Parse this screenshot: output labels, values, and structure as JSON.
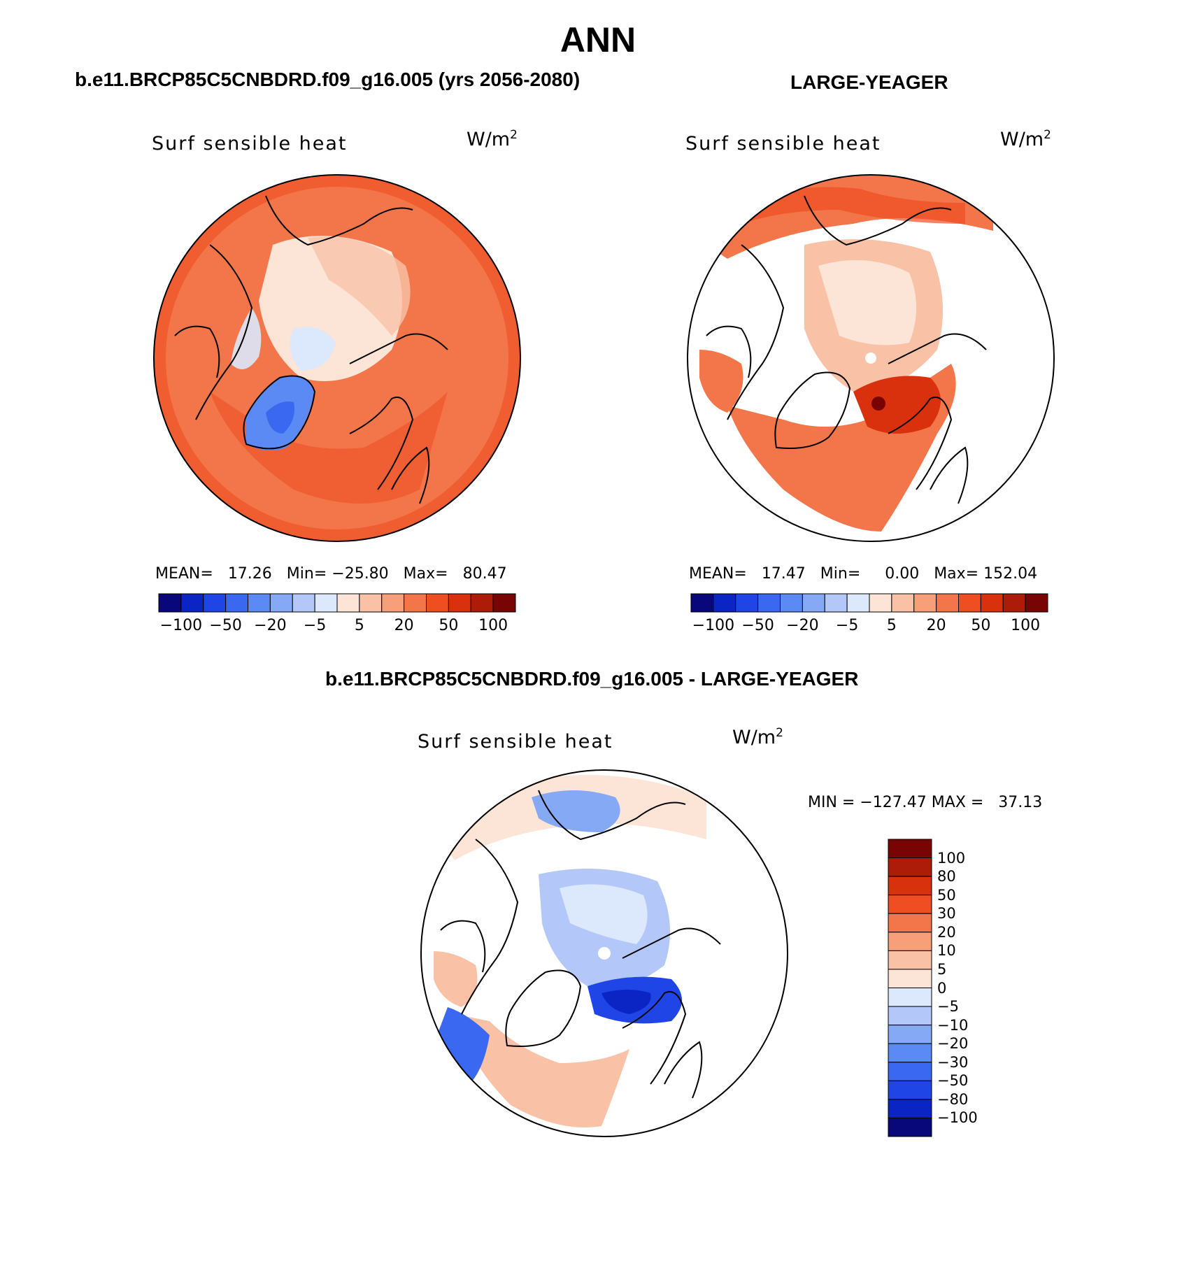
{
  "title": "ANN",
  "panel_left": {
    "case_title": "b.e11.BRCP85C5CNBDRD.f09_g16.005 (yrs 2056-2080)",
    "variable": "Surf sensible heat",
    "units": "W/m",
    "units_exp": "2",
    "stats": {
      "mean_label": "MEAN=",
      "mean": "17.26",
      "min_label": "Min=",
      "min": "−25.80",
      "max_label": "Max=",
      "max": "80.47"
    }
  },
  "panel_right": {
    "case_title": "LARGE-YEAGER",
    "variable": "Surf sensible heat",
    "units": "W/m",
    "units_exp": "2",
    "stats": {
      "mean_label": "MEAN=",
      "mean": "17.47",
      "min_label": "Min=",
      "min": "0.00",
      "max_label": "Max=",
      "max": "152.04"
    }
  },
  "panel_diff": {
    "case_title": "b.e11.BRCP85C5CNBDRD.f09_g16.005 - LARGE-YEAGER",
    "variable": "Surf sensible heat",
    "units": "W/m",
    "units_exp": "2",
    "stats": {
      "min_label": "MIN =",
      "min": "−127.47",
      "max_label": "MAX =",
      "max": "37.13"
    }
  },
  "colors": {
    "land_outline": "#000000",
    "no_data": "#ffffff",
    "levels_horizontal": [
      "#08087a",
      "#0b25c4",
      "#1f45e6",
      "#3b68f0",
      "#5b8af4",
      "#86a9f6",
      "#b3c8f8",
      "#dce8fb",
      "#fce4d6",
      "#f9c2a7",
      "#f69f79",
      "#f27649",
      "#ef4d22",
      "#d9300e",
      "#ad1c08",
      "#780404"
    ],
    "levels_vertical": [
      "#08087a",
      "#0b25c4",
      "#1f45e6",
      "#3b68f0",
      "#5b8af4",
      "#86a9f6",
      "#b3c8f8",
      "#dce8fb",
      "#fce4d6",
      "#f9c2a7",
      "#f69f79",
      "#f27649",
      "#ef4d22",
      "#d9300e",
      "#ad1c08",
      "#780404"
    ]
  },
  "colorbar_horizontal_ticks": [
    "−100",
    "−50",
    "−20",
    "−5",
    "5",
    "20",
    "50",
    "100"
  ],
  "colorbar_vertical_ticks": [
    "100",
    "80",
    "50",
    "30",
    "20",
    "10",
    "5",
    "0",
    "−5",
    "−10",
    "−20",
    "−30",
    "−50",
    "−80",
    "−100"
  ]
}
